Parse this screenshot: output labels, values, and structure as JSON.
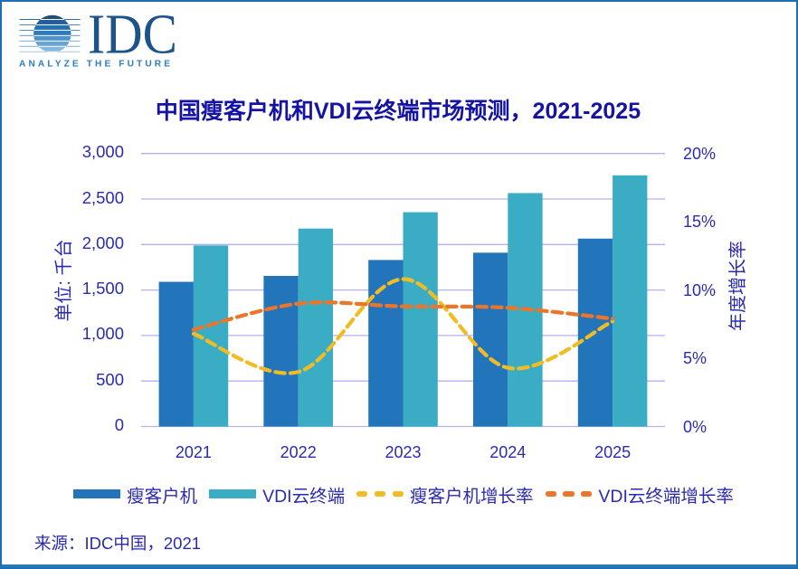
{
  "logo": {
    "brand": "IDC",
    "tagline": "ANALYZE THE FUTURE"
  },
  "title": "中国瘦客户机和VDI云终端市场预测，2021-2025",
  "source": "来源：IDC中国，2021",
  "colors": {
    "frame_border": "#1e6eb4",
    "frame_border_bottom": "#2a79b5",
    "title_text": "#1413a5",
    "axis_text": "#2b2bb2",
    "gridline": "#b2b2ec",
    "bar_thin_client": "#2274bb",
    "bar_vdi": "#3aadc5",
    "line_thin_client_growth": "#f0bc24",
    "line_vdi_growth": "#ed7529",
    "logo_navy": "#1c538b",
    "logo_tagline_blue": "#2e7cbe"
  },
  "chart_data": {
    "type": "combo-bar-line",
    "categories": [
      "2021",
      "2022",
      "2023",
      "2024",
      "2025"
    ],
    "bar_series": [
      {
        "name": "瘦客户机",
        "color": "#2274bb",
        "axis": "left",
        "values": [
          1590,
          1655,
          1830,
          1910,
          2065
        ]
      },
      {
        "name": "VDI云终端",
        "color": "#3aadc5",
        "axis": "left",
        "values": [
          1990,
          2175,
          2355,
          2565,
          2760
        ]
      }
    ],
    "line_series": [
      {
        "name": "瘦客户机增长率",
        "color": "#f0bc24",
        "axis": "right",
        "style": "dashed-smooth",
        "values_pct": [
          6.8,
          4.0,
          10.8,
          4.3,
          7.7
        ]
      },
      {
        "name": "VDI云终端增长率",
        "color": "#ed7529",
        "axis": "right",
        "style": "dashed-smooth",
        "values_pct": [
          7.1,
          9.0,
          8.8,
          8.7,
          7.9
        ]
      }
    ],
    "left_axis": {
      "title": "单位: 千台",
      "min": 0,
      "max": 3000,
      "tick_labels": [
        "3,000",
        "2,500",
        "2,000",
        "1,500",
        "1,000",
        "500",
        "0"
      ]
    },
    "right_axis": {
      "title": "年度增长率",
      "min": 0,
      "max": 20,
      "tick_labels": [
        "20%",
        "15%",
        "10%",
        "5%",
        "0%"
      ]
    },
    "grid": true,
    "legend_position": "bottom"
  }
}
